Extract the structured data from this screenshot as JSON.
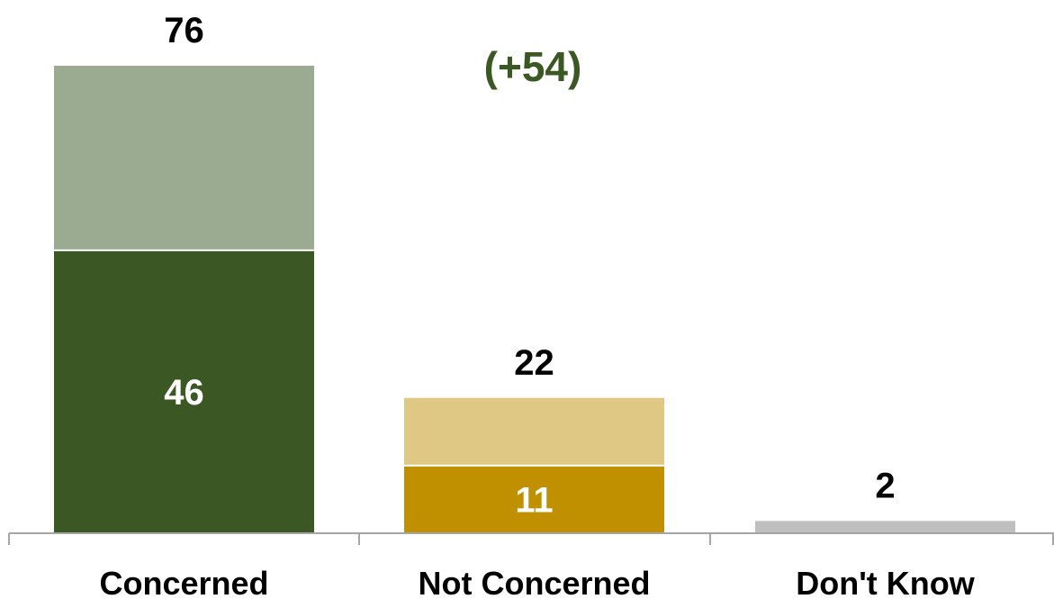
{
  "chart_data": {
    "type": "bar",
    "categories": [
      "Concerned",
      "Not Concerned",
      "Don't Know"
    ],
    "totals": [
      76,
      22,
      2
    ],
    "inner_values": [
      46,
      11,
      null
    ],
    "net_annotation": "(+54)",
    "ylim": [
      0,
      80
    ],
    "grid": false,
    "legend": "none",
    "colors": {
      "concerned_strong": "#3b5723",
      "concerned_light": "#9bab92",
      "not_concerned_strong": "#c09000",
      "not_concerned_light": "#dfc884",
      "dont_know": "#bfbfbf",
      "net_text": "#3b5723",
      "axis": "#a6a6a6",
      "bar_divider": "#ffffff"
    }
  }
}
